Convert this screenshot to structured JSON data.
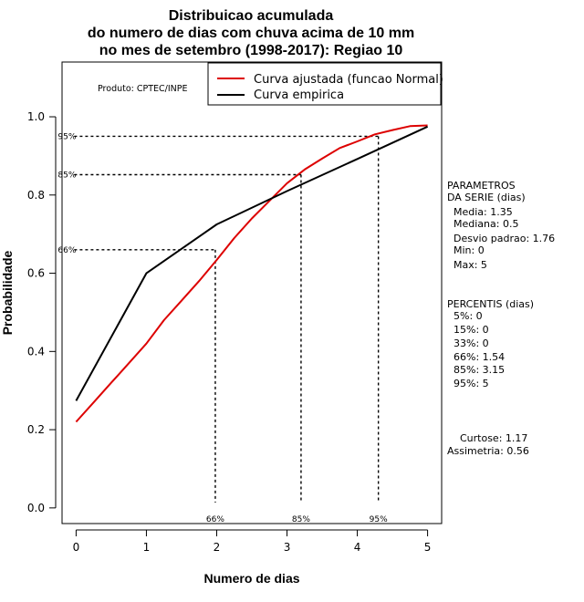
{
  "chart_data": {
    "type": "line",
    "title_lines": [
      "Distribuicao acumulada",
      "do numero de dias com chuva acima de 10 mm",
      "no mes de setembro (1998-2017): Regiao 10"
    ],
    "xlabel": "Numero de dias",
    "ylabel": "Probabilidade",
    "xlim": [
      -0.2,
      5.2
    ],
    "ylim": [
      -0.04,
      1.14
    ],
    "x_ticks": [
      0,
      1,
      2,
      3,
      4,
      5
    ],
    "y_ticks": [
      0.0,
      0.2,
      0.4,
      0.6,
      0.8,
      1.0
    ],
    "x_tick_labels": [
      "0",
      "1",
      "2",
      "3",
      "4",
      "5"
    ],
    "y_tick_labels": [
      "0.0",
      "0.2",
      "0.4",
      "0.6",
      "0.8",
      "1.0"
    ],
    "series": [
      {
        "name": "Curva ajustada (funcao Normal)",
        "color": "#dd0000",
        "x": [
          0,
          0.25,
          0.5,
          0.75,
          1,
          1.25,
          1.5,
          1.75,
          2,
          2.25,
          2.5,
          2.75,
          3,
          3.25,
          3.5,
          3.75,
          4,
          4.25,
          4.5,
          4.75,
          5
        ],
        "y": [
          0.22,
          0.27,
          0.32,
          0.37,
          0.42,
          0.48,
          0.53,
          0.58,
          0.634,
          0.69,
          0.74,
          0.785,
          0.83,
          0.865,
          0.893,
          0.92,
          0.937,
          0.955,
          0.966,
          0.976,
          0.978
        ]
      },
      {
        "name": "Curva empirica",
        "color": "#000000",
        "x": [
          0,
          1,
          2,
          3,
          4,
          5
        ],
        "y": [
          0.274,
          0.6,
          0.725,
          0.81,
          0.892,
          0.975
        ]
      }
    ],
    "percentile_markers": [
      {
        "label": "66%",
        "x": 1.98,
        "y": 0.66
      },
      {
        "label": "85%",
        "x": 3.2,
        "y": 0.852
      },
      {
        "label": "95%",
        "x": 4.3,
        "y": 0.95
      }
    ],
    "legend_position": "top-right",
    "annotation": "Produto: CPTEC/INPE"
  },
  "side_panel": {
    "params_lines": [
      "PARAMETROS",
      "DA SERIE (dias)",
      "  Media: 1.35",
      "  Mediana: 0.5",
      "  Desvio padrao: 1.76",
      "  Min: 0",
      "  Max: 5"
    ],
    "percentis_lines": [
      "PERCENTIS (dias)",
      "  5%: 0",
      "  15%: 0",
      "  33%: 0",
      "  66%: 1.54",
      "  85%: 3.15",
      "  95%: 5"
    ],
    "shape_lines": [
      "    Curtose: 1.17",
      "Assimetria: 0.56"
    ]
  }
}
